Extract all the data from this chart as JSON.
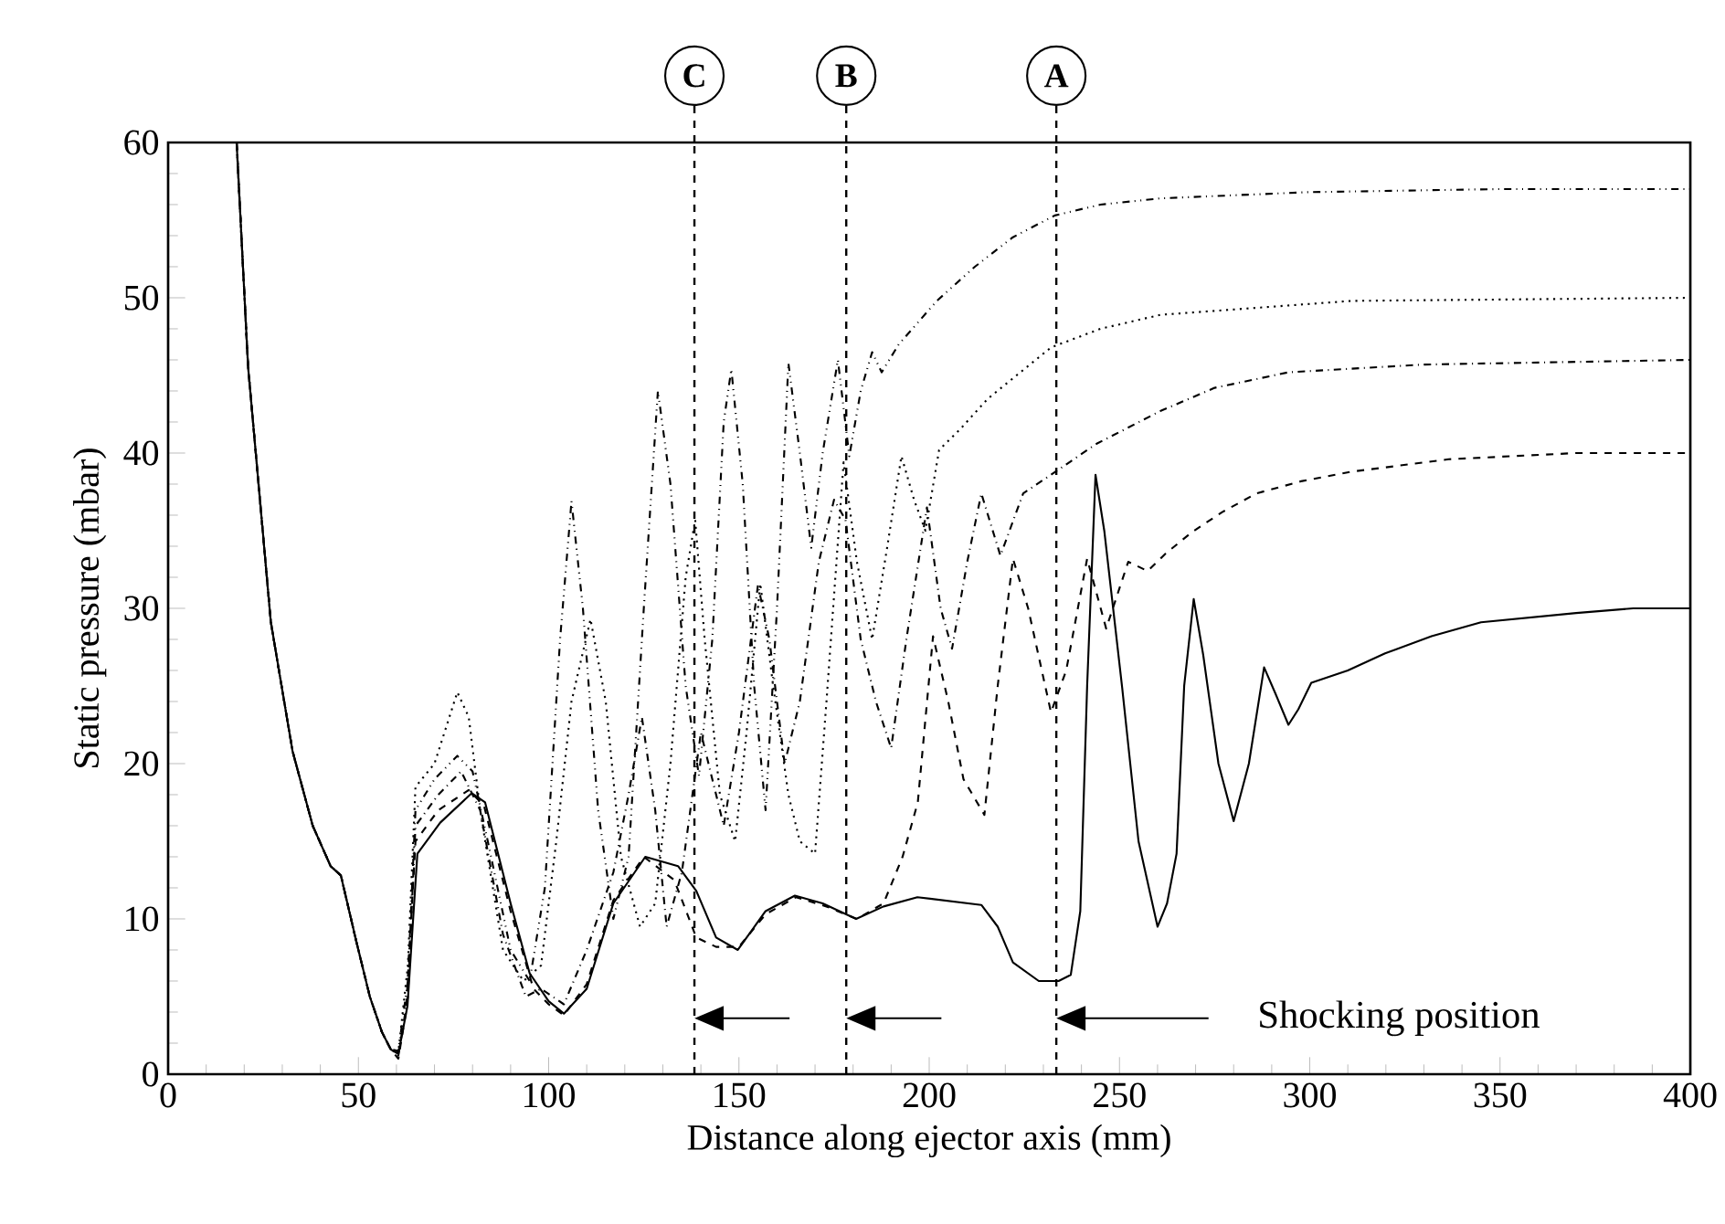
{
  "chart_data": {
    "type": "line",
    "xlabel": "Distance along ejector axis (mm)",
    "ylabel": "Static pressure (mbar)",
    "xlim": [
      0,
      400
    ],
    "xticks": [
      0,
      50,
      100,
      150,
      200,
      250,
      300,
      350,
      400
    ],
    "ylim": [
      0,
      60
    ],
    "yticks": [
      0,
      10,
      20,
      30,
      40,
      50,
      60
    ],
    "grid": false,
    "marker": "none",
    "series": [
      {
        "color": "#000000",
        "line_style": "solid",
        "x": [
          18,
          21,
          27,
          32.7,
          38,
          42.7,
          45.4,
          49.5,
          53,
          56.2,
          58.5,
          60.5,
          62.9,
          65.5,
          71.5,
          79.8,
          83.3,
          90,
          95,
          100,
          104,
          110,
          117,
          125.4,
          134,
          138.8,
          144,
          149.7,
          157,
          164.7,
          172,
          180.8,
          188,
          196.9,
          213.7,
          218,
          222,
          228.8,
          234,
          237.2,
          239.7,
          241.5,
          243.7,
          246,
          250.7,
          255,
          260,
          262.5,
          265,
          267,
          269.5,
          272,
          276,
          280,
          284,
          288,
          291,
          294.4,
          297,
          300.4,
          310,
          319.8,
          332,
          345,
          370,
          385,
          400
        ],
        "values": [
          60,
          45.6,
          29.1,
          20.8,
          16,
          13.4,
          12.8,
          8.5,
          5,
          2.7,
          1.6,
          1.3,
          4.4,
          14.2,
          16.2,
          18.1,
          17.5,
          11,
          6.5,
          4.7,
          3.9,
          5.5,
          11,
          14,
          13.4,
          11.8,
          8.8,
          8,
          10.5,
          11.5,
          11,
          10,
          10.8,
          11.4,
          10.9,
          9.5,
          7.2,
          6,
          6,
          6.4,
          10.5,
          25,
          38.6,
          35,
          24.9,
          15,
          9.5,
          11,
          14.2,
          25,
          30.6,
          27,
          20,
          16.3,
          20,
          26.2,
          24.5,
          22.5,
          23.5,
          25.2,
          26,
          27.1,
          28.2,
          29.1,
          29.7,
          30,
          30
        ]
      },
      {
        "color": "#000000",
        "line_style": "dashed",
        "x": [
          18,
          21,
          27,
          32.7,
          38,
          42.7,
          45.4,
          49.5,
          53,
          56.2,
          58.5,
          60.5,
          62.5,
          65,
          71,
          79,
          83,
          90,
          96,
          100,
          104,
          110,
          117,
          125,
          133,
          138.8,
          144,
          150,
          157,
          165,
          173,
          181,
          188,
          193,
          197,
          201,
          205,
          209,
          214.5,
          218,
          222,
          226,
          232,
          236,
          241.5,
          246.5,
          252.3,
          257.4,
          262,
          269,
          277,
          286,
          298,
          311,
          336.5,
          370,
          400
        ],
        "values": [
          60,
          45.6,
          29.1,
          20.8,
          16,
          13.4,
          12.8,
          8.5,
          5,
          2.7,
          1.6,
          1.0,
          4,
          15,
          17,
          18.3,
          17.3,
          10.5,
          5.5,
          4.5,
          3.8,
          5.8,
          11.2,
          14,
          12.5,
          8.8,
          8.2,
          8.2,
          10.3,
          11.4,
          10.8,
          10,
          11,
          14,
          17.5,
          28.2,
          24,
          19,
          16.7,
          25,
          33.2,
          30,
          23.3,
          26,
          33.2,
          28.7,
          33,
          32.4,
          33.5,
          34.9,
          36.2,
          37.4,
          38.2,
          38.8,
          39.6,
          40,
          40
        ]
      },
      {
        "color": "#000000",
        "line_style": "dashdot",
        "x": [
          18,
          21,
          27,
          32.7,
          38,
          42.7,
          45.4,
          49.5,
          53,
          56.2,
          58.5,
          60.5,
          63,
          65,
          71,
          77,
          82,
          88,
          94,
          98,
          104,
          110,
          117,
          121,
          124.5,
          128,
          131,
          135,
          140,
          146,
          150,
          155,
          158,
          162,
          166,
          171,
          175,
          178,
          182,
          186,
          190,
          194,
          199.4,
          203,
          206,
          210,
          213.7,
          218.7,
          224.7,
          232,
          244,
          260.7,
          275,
          294.4,
          330,
          400
        ],
        "values": [
          60,
          45.6,
          29.1,
          20.8,
          16,
          13.4,
          12.8,
          8.5,
          5,
          2.7,
          1.6,
          1.2,
          5,
          16,
          18,
          19.5,
          17,
          9,
          5,
          5.5,
          4.5,
          8,
          13,
          18,
          23,
          17,
          9.5,
          13,
          22,
          16,
          22,
          31.5,
          28,
          20,
          24,
          33,
          37,
          35.7,
          28,
          24,
          21,
          28,
          36.5,
          30,
          27.4,
          33,
          37.4,
          33.4,
          37.4,
          38.6,
          40.6,
          42.7,
          44.2,
          45.2,
          45.7,
          46
        ]
      },
      {
        "color": "#000000",
        "line_style": "dotted",
        "x": [
          18,
          21,
          27,
          32.7,
          38,
          42.7,
          45.4,
          49.5,
          53,
          56.2,
          58.5,
          60.5,
          63,
          65,
          70,
          76,
          79,
          82,
          88,
          93.4,
          98,
          102,
          106,
          111,
          115,
          119,
          124,
          128,
          132,
          136,
          138.5,
          141,
          145,
          149,
          152,
          155.6,
          159,
          163,
          166,
          170,
          173,
          177.5,
          181,
          185,
          189,
          192.7,
          196,
          199,
          202.6,
          208,
          215.4,
          232,
          245,
          260.7,
          311,
          400
        ],
        "values": [
          60,
          45.6,
          29.1,
          20.8,
          16,
          13.4,
          12.8,
          8.5,
          5,
          2.7,
          1.6,
          1.4,
          7,
          18.5,
          20,
          24.6,
          23,
          17,
          8,
          6,
          7,
          15,
          24,
          29.3,
          24,
          14,
          9.5,
          11,
          20,
          32,
          35.7,
          28,
          18,
          15,
          22,
          31.6,
          25,
          18,
          15,
          14.2,
          24,
          39.4,
          33,
          28,
          34,
          39.8,
          37,
          35,
          40.2,
          41.5,
          43.5,
          46.8,
          48,
          48.9,
          49.8,
          50
        ]
      },
      {
        "color": "#000000",
        "line_style": "dashdotdot",
        "x": [
          18,
          21,
          27,
          32.7,
          38,
          42.7,
          45.4,
          49.5,
          53,
          56.2,
          58.5,
          60.5,
          63,
          65,
          70,
          76,
          80,
          84,
          90,
          95,
          99,
          103,
          106,
          109,
          113,
          117,
          121,
          125,
          128.7,
          132,
          136,
          139.5,
          143,
          146,
          148,
          151,
          154,
          157,
          160,
          163,
          166,
          169,
          172,
          176,
          179,
          182,
          185,
          187.5,
          192,
          202,
          212,
          222,
          233,
          245,
          260.7,
          299.5,
          350,
          400
        ],
        "values": [
          60,
          45.6,
          29.1,
          20.8,
          16,
          13.4,
          12.8,
          8.5,
          5,
          2.7,
          1.6,
          1.5,
          6,
          17,
          19,
          20.5,
          19.5,
          15,
          8,
          6,
          12,
          28,
          36.9,
          30,
          17,
          10,
          14,
          30,
          44,
          38,
          25,
          19.2,
          28,
          42,
          45.4,
          38,
          25,
          17,
          30,
          45.8,
          40,
          33.9,
          40,
          46,
          39.8,
          44,
          46.5,
          45.2,
          47,
          49.8,
          52,
          53.9,
          55.3,
          56,
          56.4,
          56.8,
          57,
          57
        ]
      }
    ],
    "ref_lines": [
      {
        "axis": "x",
        "value": 138.3,
        "label": "C",
        "color": "#000000",
        "line_style": "dashed"
      },
      {
        "axis": "x",
        "value": 178.2,
        "label": "B",
        "color": "#000000",
        "line_style": "dashed"
      },
      {
        "axis": "x",
        "value": 233.4,
        "label": "A",
        "color": "#000000",
        "line_style": "dashed"
      }
    ],
    "annotations": [
      "Shocking position"
    ]
  }
}
